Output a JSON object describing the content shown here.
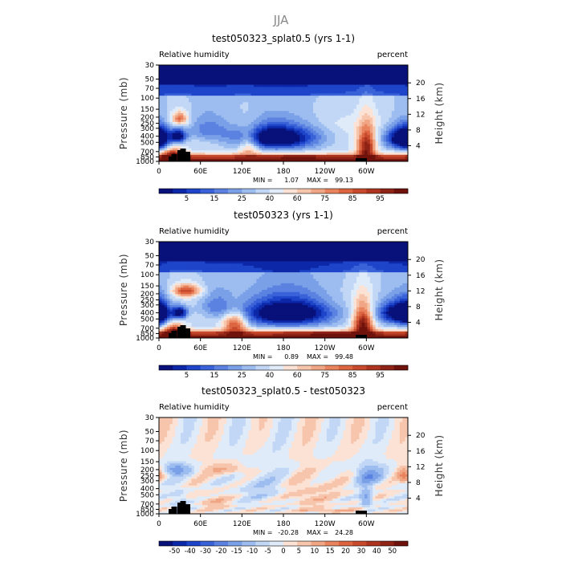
{
  "figure_title": "JJA",
  "chart_data": [
    {
      "type": "heatmap",
      "title": "test050323_splat0.5 (yrs 1-1)",
      "left_string": "Relative humidity",
      "right_string": "percent",
      "ylabel": "Pressure (mb)",
      "ylabel_right": "Height (km)",
      "x_ticks": [
        "0",
        "60E",
        "120E",
        "180",
        "120W",
        "60W"
      ],
      "y_ticks": [
        "1000",
        "850",
        "700",
        "500",
        "400",
        "300",
        "250",
        "200",
        "150",
        "100",
        "70",
        "50",
        "30"
      ],
      "y_ticks_right": [
        "4",
        "8",
        "12",
        "16",
        "20"
      ],
      "min_label": "MIN =",
      "min_value": "1.07",
      "max_label": "MAX =",
      "max_value": "99.13",
      "colorbar_labels": [
        "5",
        "15",
        "25",
        "40",
        "60",
        "75",
        "85",
        "95"
      ],
      "colormap": [
        "#08107a",
        "#0c28a8",
        "#1d44c9",
        "#3a62d8",
        "#5b82e0",
        "#7aa0e8",
        "#9dbdf0",
        "#c1d7f5",
        "#e0ebf9",
        "#fbe2d4",
        "#f6c5ac",
        "#f0a684",
        "#e8835e",
        "#dc6440",
        "#c84a2c",
        "#ad3520",
        "#8f2316",
        "#6f120c"
      ],
      "features": [
        {
          "lon": 170,
          "p": 420,
          "w": 42,
          "h": 200,
          "v": -58
        },
        {
          "lon": 350,
          "p": 430,
          "w": 18,
          "h": 180,
          "v": -48
        },
        {
          "lon": 28,
          "p": 400,
          "w": 8,
          "h": 100,
          "v": -45
        },
        {
          "lon": 0,
          "p": 450,
          "w": 10,
          "h": 200,
          "v": -30
        },
        {
          "lon": 30,
          "p": 210,
          "w": 8,
          "h": 50,
          "v": 32
        },
        {
          "lon": 300,
          "p": 600,
          "w": 9,
          "h": 350,
          "v": 50
        },
        {
          "lon": 20,
          "p": 800,
          "w": 10,
          "h": 200,
          "v": 42
        },
        {
          "lon": 130,
          "p": 550,
          "w": 10,
          "h": 250,
          "v": 25
        },
        {
          "lon": 70,
          "p": 300,
          "w": 22,
          "h": 150,
          "v": -22
        },
        {
          "lon": 200,
          "p": 850,
          "w": 40,
          "h": 60,
          "v": 12
        }
      ]
    },
    {
      "type": "heatmap",
      "title": "test050323 (yrs 1-1)",
      "left_string": "Relative humidity",
      "right_string": "percent",
      "ylabel": "Pressure (mb)",
      "ylabel_right": "Height (km)",
      "x_ticks": [
        "0",
        "60E",
        "120E",
        "180",
        "120W",
        "60W"
      ],
      "y_ticks": [
        "1000",
        "850",
        "700",
        "500",
        "400",
        "300",
        "250",
        "200",
        "150",
        "100",
        "70",
        "50",
        "30"
      ],
      "y_ticks_right": [
        "4",
        "8",
        "12",
        "16",
        "20"
      ],
      "min_label": "MIN =",
      "min_value": "0.89",
      "max_label": "MAX =",
      "max_value": "99.48",
      "colorbar_labels": [
        "5",
        "15",
        "25",
        "40",
        "60",
        "75",
        "85",
        "95"
      ],
      "colormap": [
        "#08107a",
        "#0c28a8",
        "#1d44c9",
        "#3a62d8",
        "#5b82e0",
        "#7aa0e8",
        "#9dbdf0",
        "#c1d7f5",
        "#e0ebf9",
        "#fbe2d4",
        "#f6c5ac",
        "#f0a684",
        "#e8835e",
        "#dc6440",
        "#c84a2c",
        "#ad3520",
        "#8f2316",
        "#6f120c"
      ],
      "features": [
        {
          "lon": 185,
          "p": 400,
          "w": 48,
          "h": 220,
          "v": -60
        },
        {
          "lon": 345,
          "p": 400,
          "w": 22,
          "h": 180,
          "v": -50
        },
        {
          "lon": 30,
          "p": 400,
          "w": 8,
          "h": 90,
          "v": -45
        },
        {
          "lon": 0,
          "p": 420,
          "w": 10,
          "h": 200,
          "v": -32
        },
        {
          "lon": 40,
          "p": 180,
          "w": 14,
          "h": 40,
          "v": 40
        },
        {
          "lon": 295,
          "p": 620,
          "w": 10,
          "h": 350,
          "v": 55
        },
        {
          "lon": 22,
          "p": 800,
          "w": 10,
          "h": 220,
          "v": 45
        },
        {
          "lon": 110,
          "p": 600,
          "w": 12,
          "h": 250,
          "v": 40
        },
        {
          "lon": 85,
          "p": 300,
          "w": 22,
          "h": 150,
          "v": -20
        },
        {
          "lon": 240,
          "p": 850,
          "w": 40,
          "h": 60,
          "v": 12
        }
      ]
    },
    {
      "type": "heatmap",
      "title": "test050323_splat0.5 - test050323",
      "left_string": "Relative humidity",
      "right_string": "percent",
      "ylabel": "Pressure (mb)",
      "ylabel_right": "Height (km)",
      "x_ticks": [
        "0",
        "60E",
        "120E",
        "180",
        "120W",
        "60W"
      ],
      "y_ticks": [
        "1000",
        "850",
        "700",
        "500",
        "400",
        "300",
        "250",
        "200",
        "150",
        "100",
        "70",
        "50",
        "30"
      ],
      "y_ticks_right": [
        "4",
        "8",
        "12",
        "16",
        "20"
      ],
      "min_label": "MIN =",
      "min_value": "-20.28",
      "max_label": "MAX =",
      "max_value": "24.28",
      "colorbar_labels": [
        "-50",
        "-40",
        "-30",
        "-20",
        "-15",
        "-10",
        "-5",
        "0",
        "5",
        "10",
        "15",
        "20",
        "30",
        "40",
        "50"
      ],
      "colormap": [
        "#08107a",
        "#0c28a8",
        "#1d44c9",
        "#3a62d8",
        "#5b82e0",
        "#7aa0e8",
        "#9dbdf0",
        "#c1d7f5",
        "#e0ebf9",
        "#fbe2d4",
        "#f6c5ac",
        "#f0a684",
        "#e8835e",
        "#dc6440",
        "#c84a2c",
        "#ad3520",
        "#8f2316",
        "#6f120c"
      ],
      "features": [
        {
          "lon": 25,
          "p": 200,
          "w": 12,
          "h": 40,
          "v": -14
        },
        {
          "lon": 305,
          "p": 250,
          "w": 14,
          "h": 80,
          "v": -13
        },
        {
          "lon": 300,
          "p": 580,
          "w": 6,
          "h": 220,
          "v": -11
        },
        {
          "lon": 100,
          "p": 200,
          "w": 20,
          "h": 40,
          "v": 6
        },
        {
          "lon": 150,
          "p": 400,
          "w": 30,
          "h": 250,
          "v": -4
        },
        {
          "lon": 215,
          "p": 500,
          "w": 25,
          "h": 250,
          "v": 4
        },
        {
          "lon": 30,
          "p": 700,
          "w": 10,
          "h": 300,
          "v": -5
        },
        {
          "lon": 80,
          "p": 650,
          "w": 15,
          "h": 200,
          "v": 4
        },
        {
          "lon": 355,
          "p": 250,
          "w": 6,
          "h": 60,
          "v": 11
        },
        {
          "lon": 250,
          "p": 880,
          "w": 30,
          "h": 60,
          "v": 6
        }
      ]
    }
  ]
}
